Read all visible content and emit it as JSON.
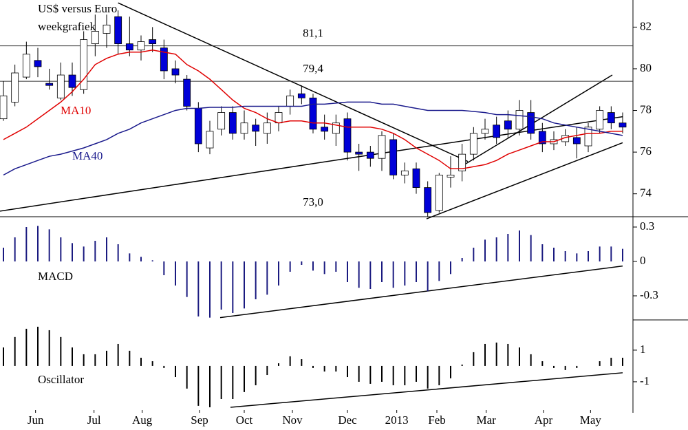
{
  "chart_data": [
    {
      "type": "candlestick",
      "title": "US$ versus Euro",
      "subtitle": "weekgrafiek",
      "x": [
        0,
        1,
        2,
        3,
        4,
        5,
        6,
        7,
        8,
        9,
        10,
        11,
        12,
        13,
        14,
        15,
        16,
        17,
        18,
        19,
        20,
        21,
        22,
        23,
        24,
        25,
        26,
        27,
        28,
        29,
        30,
        31,
        32,
        33,
        34,
        35,
        36,
        37,
        38,
        39,
        40,
        41,
        42,
        43,
        44,
        45,
        46,
        47,
        48,
        49,
        50,
        51,
        52,
        53,
        54
      ],
      "open": [
        77.6,
        78.4,
        79.6,
        80.4,
        79.3,
        78.6,
        79.7,
        79.0,
        81.2,
        81.7,
        82.5,
        81.2,
        80.9,
        81.4,
        81.0,
        80.0,
        79.5,
        78.1,
        76.2,
        77.1,
        77.9,
        76.9,
        77.3,
        76.9,
        77.4,
        78.2,
        78.8,
        78.6,
        77.2,
        76.9,
        77.6,
        76.0,
        76.0,
        75.7,
        76.6,
        74.9,
        75.2,
        74.3,
        73.2,
        74.8,
        75.1,
        75.9,
        76.9,
        77.3,
        77.5,
        77.1,
        77.9,
        77.0,
        76.4,
        76.5,
        76.7,
        76.3,
        77.1,
        77.9,
        77.4
      ],
      "high": [
        79.4,
        80.2,
        81.3,
        81.0,
        80.0,
        80.3,
        80.3,
        81.8,
        82.6,
        82.6,
        82.8,
        82.5,
        81.6,
        82.0,
        81.4,
        80.4,
        79.7,
        78.4,
        77.5,
        78.2,
        78.2,
        78.0,
        77.6,
        77.9,
        78.2,
        79.0,
        79.2,
        78.8,
        77.8,
        77.8,
        77.9,
        76.4,
        76.3,
        77.0,
        76.9,
        75.5,
        75.5,
        74.6,
        75.0,
        75.8,
        76.4,
        77.2,
        77.6,
        77.7,
        78.0,
        78.5,
        78.5,
        77.4,
        77.0,
        77.1,
        77.2,
        77.4,
        78.2,
        78.2,
        77.9
      ],
      "low": [
        77.5,
        78.2,
        79.5,
        79.6,
        79.0,
        78.5,
        78.7,
        78.8,
        80.6,
        81.0,
        80.7,
        80.6,
        80.4,
        80.8,
        79.5,
        79.3,
        78.0,
        76.0,
        75.9,
        76.8,
        76.6,
        76.6,
        76.3,
        76.4,
        77.0,
        77.8,
        78.3,
        76.9,
        76.6,
        76.3,
        75.6,
        75.1,
        75.3,
        75.1,
        74.7,
        74.5,
        74.0,
        72.9,
        73.1,
        74.3,
        74.6,
        75.6,
        76.6,
        76.4,
        76.7,
        76.8,
        76.6,
        76.0,
        76.1,
        76.3,
        75.7,
        76.0,
        76.9,
        77.1,
        76.9
      ],
      "close": [
        78.7,
        79.8,
        80.7,
        80.1,
        79.2,
        79.7,
        79.1,
        81.4,
        81.8,
        82.1,
        81.2,
        80.9,
        81.3,
        81.2,
        79.9,
        79.7,
        78.2,
        76.4,
        77.0,
        77.9,
        76.9,
        77.4,
        77.0,
        77.4,
        77.9,
        78.7,
        78.6,
        77.1,
        77.0,
        77.4,
        76.0,
        75.9,
        75.7,
        76.8,
        74.9,
        75.1,
        74.3,
        73.1,
        74.9,
        74.9,
        75.9,
        76.9,
        77.1,
        76.7,
        77.1,
        78.0,
        76.9,
        76.4,
        76.6,
        76.8,
        76.4,
        77.2,
        78.0,
        77.4,
        77.2
      ],
      "up_color": "#ffffff",
      "down_color": "#0000d8",
      "series": [
        {
          "name": "MA10",
          "color": "#e00000",
          "values": [
            76.6,
            76.9,
            77.2,
            77.6,
            78.0,
            78.4,
            78.9,
            79.5,
            80.2,
            80.5,
            80.7,
            80.8,
            80.8,
            80.9,
            80.8,
            80.7,
            80.2,
            79.9,
            79.5,
            79.0,
            78.5,
            78.1,
            77.9,
            77.6,
            77.4,
            77.5,
            77.5,
            77.4,
            77.4,
            77.3,
            77.2,
            77.2,
            77.2,
            77.1,
            76.9,
            76.6,
            76.2,
            75.9,
            75.6,
            75.2,
            75.2,
            75.3,
            75.4,
            75.6,
            75.9,
            76.1,
            76.3,
            76.5,
            76.5,
            76.7,
            76.8,
            76.9,
            76.9,
            77.0,
            77.0
          ]
        },
        {
          "name": "MA40",
          "color": "#1a1a8c",
          "values": [
            74.9,
            75.2,
            75.4,
            75.6,
            75.8,
            75.9,
            76.05,
            76.2,
            76.4,
            76.6,
            76.9,
            77.1,
            77.4,
            77.6,
            77.8,
            78.0,
            78.1,
            78.1,
            78.15,
            78.15,
            78.15,
            78.2,
            78.2,
            78.2,
            78.2,
            78.2,
            78.2,
            78.3,
            78.3,
            78.35,
            78.4,
            78.4,
            78.4,
            78.3,
            78.3,
            78.2,
            78.1,
            78.0,
            78.0,
            78.0,
            78.0,
            77.95,
            77.9,
            77.8,
            77.8,
            77.75,
            77.7,
            77.6,
            77.4,
            77.3,
            77.2,
            77.1,
            77.0,
            76.9,
            76.8
          ]
        }
      ],
      "levels": [
        {
          "value": 81.1,
          "label": "81,1"
        },
        {
          "value": 79.4,
          "label": "79,4"
        },
        {
          "value": 73.0,
          "label": "73,0"
        }
      ],
      "trendlines": [
        {
          "x": [
            10.0,
            40.5
          ],
          "y": [
            83.16,
            75.55
          ]
        },
        {
          "x": [
            -0.3,
            54.0
          ],
          "y": [
            73.17,
            77.7
          ]
        },
        {
          "x": [
            40.2,
            53.1
          ],
          "y": [
            75.4,
            79.7
          ]
        },
        {
          "x": [
            36.9,
            54.0
          ],
          "y": [
            72.8,
            76.45
          ]
        }
      ],
      "xlim": [
        -0.3,
        54.9
      ],
      "ylim": [
        72.9,
        83.3
      ],
      "yticks": [
        82,
        80,
        78,
        76,
        74
      ],
      "xticks": [
        {
          "value": 2.8,
          "label": "Jun"
        },
        {
          "value": 7.9,
          "label": "Jul"
        },
        {
          "value": 12.1,
          "label": "Aug"
        },
        {
          "value": 17.1,
          "label": "Sep"
        },
        {
          "value": 21.0,
          "label": "Oct"
        },
        {
          "value": 25.2,
          "label": "Nov"
        },
        {
          "value": 30.0,
          "label": "Dec"
        },
        {
          "value": 34.3,
          "label": "2013"
        },
        {
          "value": 37.8,
          "label": "Feb"
        },
        {
          "value": 42.1,
          "label": "Mar"
        },
        {
          "value": 47.1,
          "label": "Apr"
        },
        {
          "value": 51.2,
          "label": "May"
        }
      ]
    },
    {
      "type": "bar",
      "title": "MACD",
      "color": "#1a1a80",
      "values": [
        0.12,
        0.21,
        0.3,
        0.31,
        0.28,
        0.21,
        0.16,
        0.13,
        0.18,
        0.21,
        0.15,
        0.07,
        0.04,
        0.01,
        -0.12,
        -0.21,
        -0.31,
        -0.48,
        -0.49,
        -0.42,
        -0.45,
        -0.41,
        -0.33,
        -0.29,
        -0.21,
        -0.09,
        -0.03,
        -0.08,
        -0.11,
        -0.09,
        -0.18,
        -0.23,
        -0.24,
        -0.18,
        -0.23,
        -0.21,
        -0.18,
        -0.26,
        -0.17,
        -0.11,
        0.03,
        0.12,
        0.19,
        0.21,
        0.24,
        0.27,
        0.23,
        0.15,
        0.12,
        0.09,
        0.07,
        0.09,
        0.13,
        0.13,
        0.11
      ],
      "trendlines": [
        {
          "x": [
            18.9,
            54.0
          ],
          "y": [
            -0.49,
            -0.04
          ]
        }
      ],
      "ylim": [
        -0.51,
        0.39
      ],
      "yticks": [
        0.3,
        0,
        -0.3
      ]
    },
    {
      "type": "bar",
      "title": "Oscillator",
      "color": "#000000",
      "values": [
        1.17,
        1.83,
        2.35,
        2.48,
        2.26,
        1.83,
        1.17,
        0.74,
        0.74,
        0.96,
        1.39,
        0.96,
        0.52,
        0.3,
        -0.13,
        -0.7,
        -1.43,
        -2.52,
        -2.61,
        -2.09,
        -2.09,
        -1.65,
        -1.22,
        -0.57,
        0.17,
        0.61,
        0.43,
        -0.13,
        -0.35,
        -0.35,
        -0.7,
        -1.0,
        -1.13,
        -1.0,
        -1.22,
        -1.22,
        -1.0,
        -1.43,
        -1.22,
        -0.78,
        0.09,
        0.87,
        1.39,
        1.48,
        1.39,
        1.17,
        0.74,
        0.3,
        -0.13,
        -0.26,
        -0.13,
        0,
        0.3,
        0.52,
        0.52
      ],
      "trendlines": [
        {
          "x": [
            19.8,
            54.0
          ],
          "y": [
            -2.61,
            -0.43
          ]
        }
      ],
      "ylim": [
        -2.96,
        2.91
      ],
      "yticks": [
        1,
        -1
      ]
    }
  ]
}
